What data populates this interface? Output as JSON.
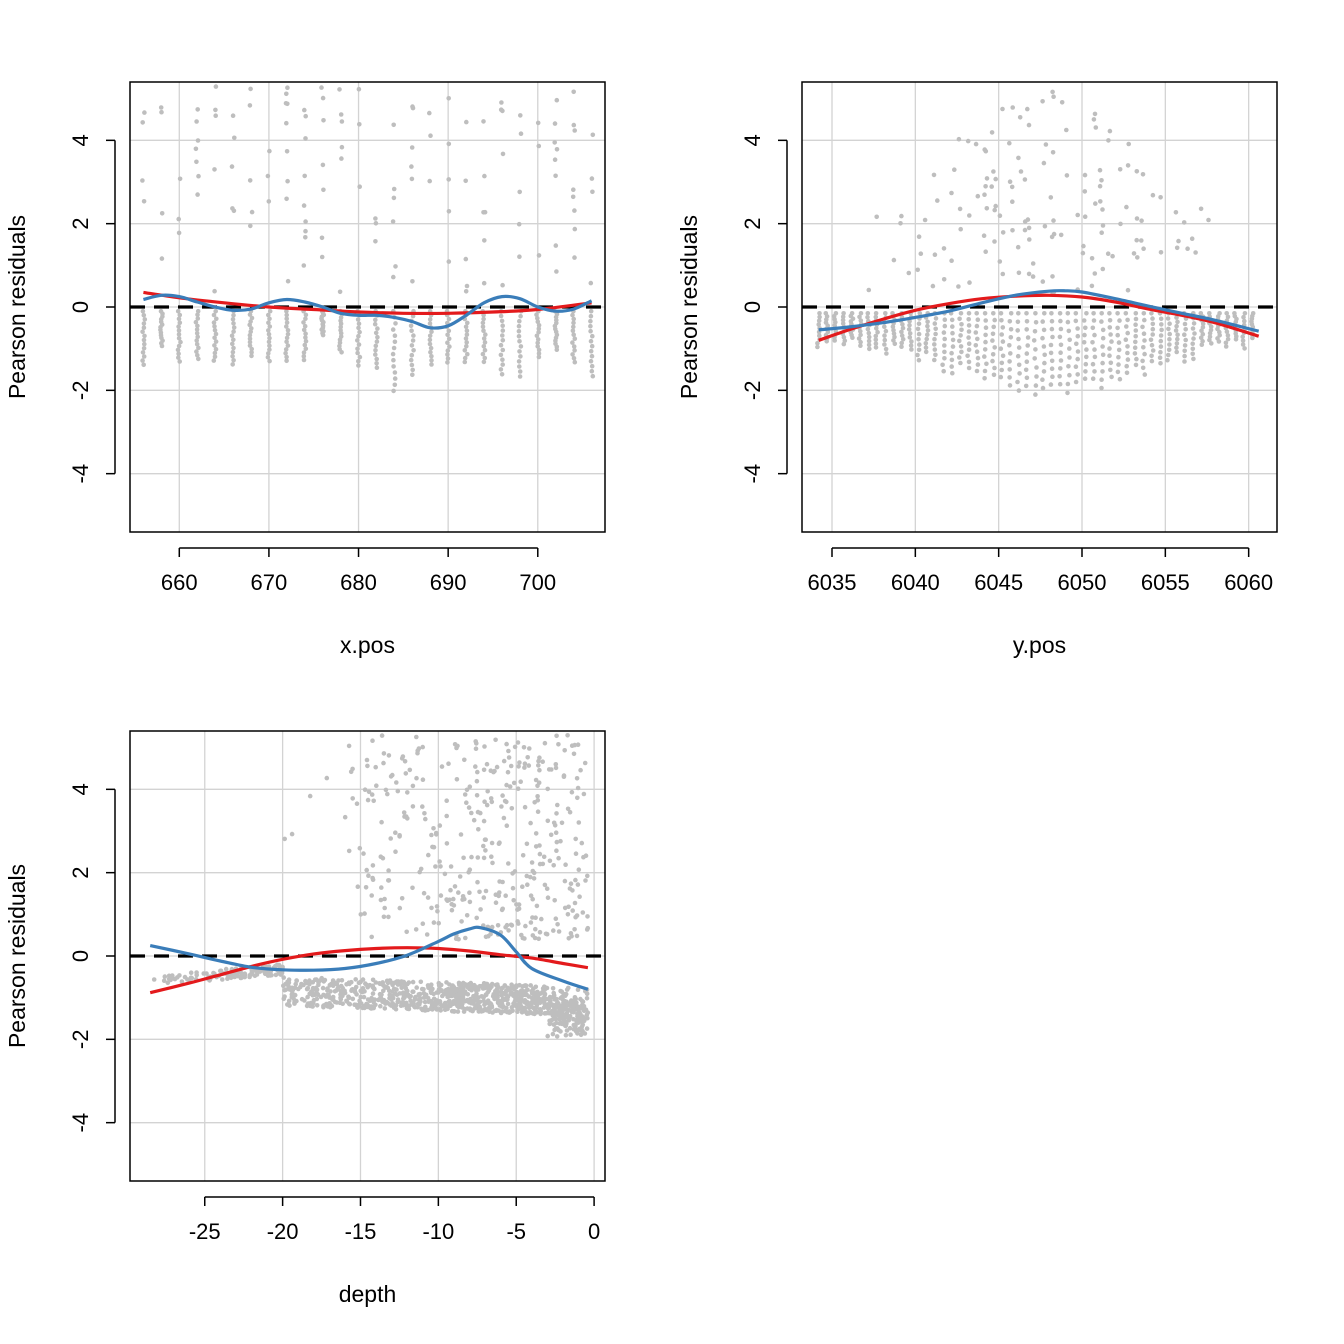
{
  "colors": {
    "points": "#BEBEBE",
    "grid": "#D3D3D3",
    "red_curve": "#E31A1C",
    "blue_curve": "#3A7DB9",
    "zero_line": "#000000",
    "frame": "#000000"
  },
  "chart_data": [
    {
      "type": "scatter",
      "title": "",
      "xlabel": "x.pos",
      "ylabel": "Pearson residuals",
      "xlim": [
        654.5,
        707.5
      ],
      "ylim": [
        -5.4,
        5.4
      ],
      "x_ticks": [
        660,
        670,
        680,
        690,
        700
      ],
      "x_tick_labels": [
        "660",
        "670",
        "680",
        "690",
        "700"
      ],
      "y_ticks": [
        -4,
        -2,
        0,
        2,
        4
      ],
      "y_tick_labels": [
        "-4",
        "-2",
        "0",
        "2",
        "4"
      ],
      "grid": true,
      "zero_line": {
        "y": 0,
        "style": "dashed"
      },
      "points_summary": {
        "x_columns_from": 656,
        "x_columns_to": 706,
        "x_columns_step": 2,
        "y_min": -2.05,
        "y_max": 5.3
      },
      "series": [
        {
          "color": "red",
          "x": [
            656,
            660,
            665,
            670,
            675,
            680,
            685,
            690,
            695,
            700,
            706
          ],
          "y": [
            0.35,
            0.22,
            0.1,
            0.0,
            -0.06,
            -0.12,
            -0.15,
            -0.15,
            -0.12,
            -0.06,
            0.1
          ]
        },
        {
          "color": "blue",
          "x": [
            656,
            658,
            660,
            662,
            664,
            666,
            668,
            670,
            672,
            674,
            676,
            678,
            680,
            682,
            684,
            686,
            688,
            690,
            692,
            694,
            696,
            698,
            700,
            702,
            704,
            706
          ],
          "y": [
            0.18,
            0.28,
            0.25,
            0.12,
            0.0,
            -0.08,
            -0.05,
            0.1,
            0.18,
            0.12,
            0.0,
            -0.15,
            -0.2,
            -0.2,
            -0.25,
            -0.35,
            -0.5,
            -0.45,
            -0.2,
            0.1,
            0.25,
            0.2,
            0.0,
            -0.1,
            -0.05,
            0.15
          ]
        }
      ]
    },
    {
      "type": "scatter",
      "title": "",
      "xlabel": "y.pos",
      "ylabel": "Pearson residuals",
      "xlim": [
        6033.2,
        6061.7
      ],
      "ylim": [
        -5.4,
        5.4
      ],
      "x_ticks": [
        6035,
        6040,
        6045,
        6050,
        6055,
        6060
      ],
      "x_tick_labels": [
        "6035",
        "6040",
        "6045",
        "6050",
        "6055",
        "6060"
      ],
      "y_ticks": [
        -4,
        -2,
        0,
        2,
        4
      ],
      "y_tick_labels": [
        "-4",
        "-2",
        "0",
        "2",
        "4"
      ],
      "grid": true,
      "zero_line": {
        "y": 0,
        "style": "dashed"
      },
      "points_summary": {
        "x_columns_from": 6034.2,
        "x_columns_to": 6060.6,
        "x_columns_step": 0.5,
        "y_min": -2.05,
        "y_max": 5.35
      },
      "series": [
        {
          "color": "red",
          "x": [
            6034.2,
            6036,
            6038,
            6040,
            6042,
            6044,
            6046,
            6048,
            6050,
            6052,
            6054,
            6056,
            6058,
            6060.6
          ],
          "y": [
            -0.8,
            -0.55,
            -0.3,
            -0.08,
            0.08,
            0.2,
            0.26,
            0.28,
            0.24,
            0.12,
            -0.05,
            -0.2,
            -0.38,
            -0.7
          ]
        },
        {
          "color": "blue",
          "x": [
            6034.2,
            6036,
            6038,
            6040,
            6042,
            6044,
            6046,
            6048,
            6049,
            6050,
            6052,
            6054,
            6056,
            6058,
            6060.6
          ],
          "y": [
            -0.55,
            -0.48,
            -0.38,
            -0.25,
            -0.1,
            0.1,
            0.28,
            0.38,
            0.39,
            0.36,
            0.2,
            0.02,
            -0.15,
            -0.32,
            -0.58
          ]
        }
      ]
    },
    {
      "type": "scatter",
      "title": "",
      "xlabel": "depth",
      "ylabel": "Pearson residuals",
      "xlim": [
        -29.8,
        0.7
      ],
      "ylim": [
        -5.4,
        5.4
      ],
      "x_ticks": [
        -25,
        -20,
        -15,
        -10,
        -5,
        0
      ],
      "x_tick_labels": [
        "-25",
        "-20",
        "-15",
        "-10",
        "-5",
        "0"
      ],
      "y_ticks": [
        -4,
        -2,
        0,
        2,
        4
      ],
      "y_tick_labels": [
        "-4",
        "-2",
        "0",
        "2",
        "4"
      ],
      "grid": true,
      "zero_line": {
        "y": 0,
        "style": "dashed"
      },
      "points_summary": {
        "x_min": -28.5,
        "x_max": -0.4,
        "y_min": -2.05,
        "y_max": 5.35
      },
      "series": [
        {
          "color": "red",
          "x": [
            -28.5,
            -26,
            -24,
            -22,
            -20,
            -18,
            -16,
            -14,
            -12,
            -10,
            -8,
            -6,
            -4,
            -2,
            -0.4
          ],
          "y": [
            -0.88,
            -0.65,
            -0.45,
            -0.25,
            -0.08,
            0.05,
            0.13,
            0.18,
            0.2,
            0.18,
            0.12,
            0.03,
            -0.05,
            -0.18,
            -0.28
          ]
        },
        {
          "color": "blue",
          "x": [
            -28.5,
            -26,
            -24,
            -22,
            -20,
            -18,
            -16,
            -14,
            -12,
            -10,
            -9,
            -8,
            -7.3,
            -6,
            -5,
            -4,
            -2,
            -0.4
          ],
          "y": [
            0.25,
            0.05,
            -0.12,
            -0.27,
            -0.33,
            -0.34,
            -0.3,
            -0.18,
            0.02,
            0.35,
            0.53,
            0.65,
            0.68,
            0.5,
            0.1,
            -0.3,
            -0.6,
            -0.8
          ]
        }
      ]
    }
  ]
}
